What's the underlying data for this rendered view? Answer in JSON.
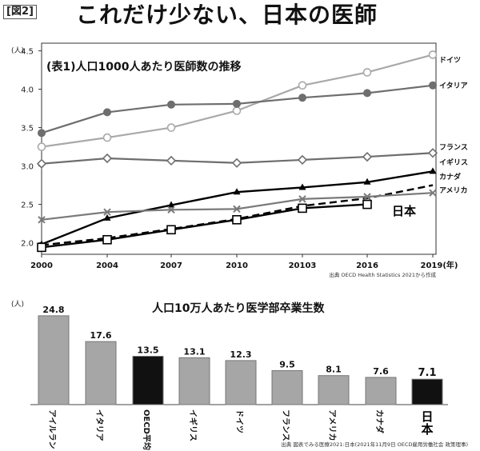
{
  "figure_label": "[図2]",
  "main_title": "これだけ少ない、日本の医師",
  "colors": {
    "dark_gray": "#6e6e6e",
    "light_gray": "#a9a9a9",
    "mid_gray": "#7a7a7a",
    "black": "#000000",
    "bar_gray": "#a6a6a6",
    "bar_black": "#111111"
  },
  "chart_data": [
    {
      "type": "line",
      "title": "(表1)人口1000人あたり医師数の推移",
      "unit_label": "(人)",
      "source": "出典 OECD Health Statistics 2021から作成",
      "x_ticks": [
        "2000",
        "2004",
        "2007",
        "2010",
        "20103",
        "2016",
        "2019(年)"
      ],
      "y_ticks": [
        "2.0",
        "2.5",
        "3.0",
        "3.5",
        "4.0",
        "4.5"
      ],
      "ylim": [
        1.85,
        4.6
      ],
      "grid": false,
      "series": [
        {
          "name": "ドイツ",
          "marker": "open-circle",
          "color": "#a9a9a9",
          "dashed": false,
          "values": [
            3.25,
            3.37,
            3.5,
            3.72,
            4.05,
            4.22,
            4.45
          ]
        },
        {
          "name": "イタリア",
          "marker": "filled-circle",
          "color": "#6e6e6e",
          "dashed": false,
          "values": [
            3.43,
            3.7,
            3.8,
            3.81,
            3.89,
            3.95,
            4.05
          ]
        },
        {
          "name": "フランス",
          "marker": "diamond",
          "color": "#6e6e6e",
          "dashed": false,
          "values": [
            3.03,
            3.1,
            3.07,
            3.04,
            3.08,
            3.12,
            3.17
          ]
        },
        {
          "name": "イギリス",
          "marker": "triangle",
          "color": "#000000",
          "dashed": false,
          "values": [
            1.98,
            2.32,
            2.49,
            2.66,
            2.72,
            2.79,
            2.93
          ]
        },
        {
          "name": "カナダ",
          "marker": "none",
          "color": "#000000",
          "dashed": true,
          "values": [
            1.97,
            2.06,
            2.18,
            2.31,
            2.48,
            2.58,
            2.75
          ]
        },
        {
          "name": "アメリカ",
          "marker": "x",
          "color": "#7a7a7a",
          "dashed": false,
          "values": [
            2.3,
            2.4,
            2.43,
            2.44,
            2.57,
            2.6,
            2.65
          ]
        },
        {
          "name": "日本",
          "marker": "open-square",
          "color": "#000000",
          "dashed": false,
          "values": [
            1.94,
            2.04,
            2.17,
            2.3,
            2.45,
            2.5,
            null
          ]
        }
      ]
    },
    {
      "type": "bar",
      "title": "人口10万人あたり医学部卒業生数",
      "unit_label": "(人)",
      "source": "出典 図表でみる医療2021:日本(2021年11月9日 OECD雇用労働社会 政策理事)",
      "ylim": [
        0,
        25
      ],
      "categories": [
        "アイルランド",
        "イタリア",
        "OECD平均",
        "イギリス",
        "ドイツ",
        "フランス",
        "アメリカ",
        "カナダ",
        "日本"
      ],
      "values": [
        24.8,
        17.6,
        13.5,
        13.1,
        12.3,
        9.5,
        8.1,
        7.6,
        7.1
      ],
      "value_labels": [
        "24.8",
        "17.6",
        "13.5",
        "13.1",
        "12.3",
        "9.5",
        "8.1",
        "7.6",
        "7.1"
      ],
      "highlight": [
        "OECD平均",
        "日本"
      ]
    }
  ]
}
